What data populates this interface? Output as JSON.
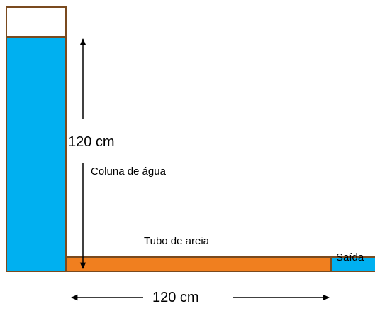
{
  "colors": {
    "water": "#00B0F0",
    "sand": "#F07F1F",
    "outline": "#7A4A1E",
    "empty": "#FFFFFF",
    "text": "#000000"
  },
  "labels": {
    "height": "120 cm",
    "column": "Coluna de água",
    "tube": "Tubo de areia",
    "outlet": "Saída",
    "length": "120 cm"
  }
}
